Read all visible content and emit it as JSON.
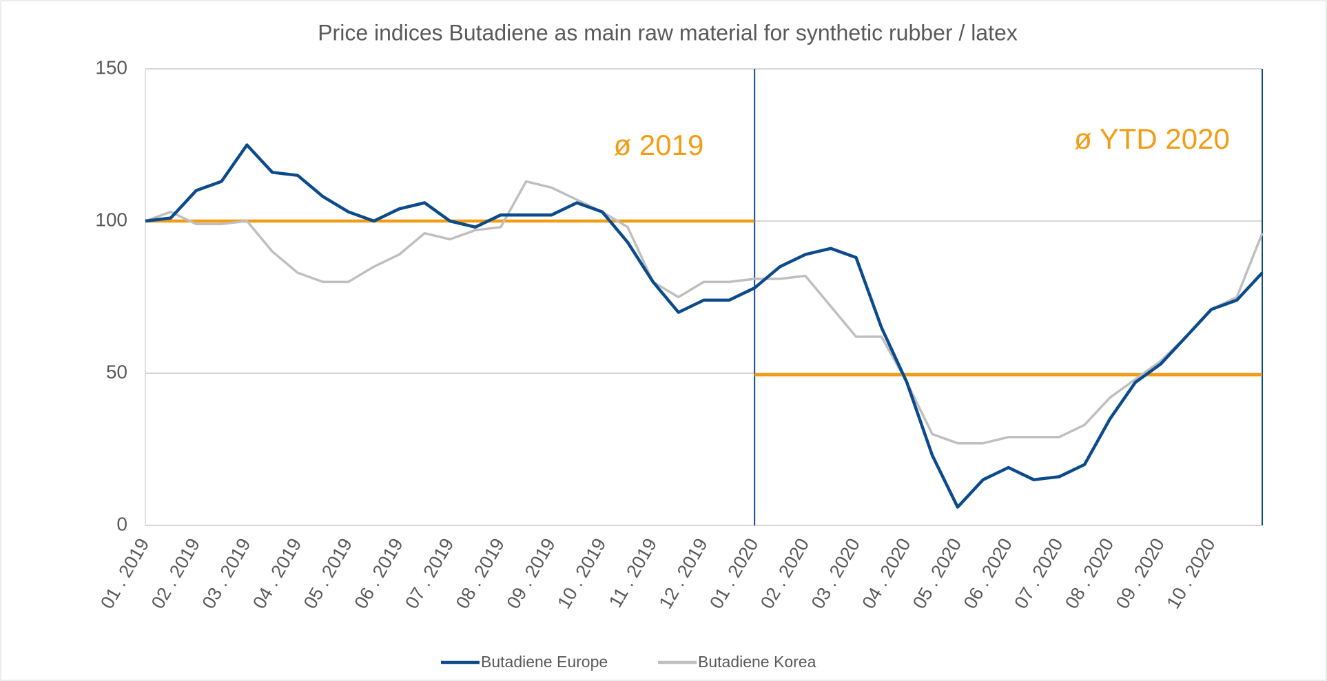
{
  "chart_data": {
    "type": "line",
    "title": "Price indices Butadiene as main raw material for synthetic rubber / latex",
    "categories": [
      "01 . 2019",
      null,
      "02 . 2019",
      null,
      "03 . 2019",
      null,
      "04 . 2019",
      null,
      "05 . 2019",
      null,
      "06 . 2019",
      null,
      "07 . 2019",
      null,
      "08 . 2019",
      null,
      "09 . 2019",
      null,
      "10 . 2019",
      null,
      "11 . 2019",
      null,
      "12 . 2019",
      null,
      "01 . 2020",
      null,
      "02 . 2020",
      null,
      "03 . 2020",
      null,
      "04 . 2020",
      null,
      "05 . 2020",
      null,
      "06 . 2020",
      null,
      "07 . 2020",
      null,
      "08 . 2020",
      null,
      "09 . 2020",
      null,
      "10 . 2020",
      null,
      null
    ],
    "series": [
      {
        "name": "Butadiene Europe",
        "color": "#0b4a8b",
        "values": [
          100,
          101,
          110,
          113,
          125,
          116,
          115,
          108,
          103,
          100,
          104,
          106,
          100,
          98,
          102,
          102,
          102,
          106,
          103,
          93,
          80,
          70,
          74,
          74,
          78,
          85,
          89,
          91,
          88,
          65,
          47,
          23,
          6,
          15,
          19,
          15,
          16,
          20,
          35,
          47,
          53,
          62,
          71,
          74,
          83
        ]
      },
      {
        "name": "Butadiene Korea",
        "color": "#bfbfbf",
        "values": [
          100,
          103,
          99,
          99,
          100,
          90,
          83,
          80,
          80,
          85,
          89,
          96,
          94,
          97,
          98,
          113,
          111,
          107,
          103,
          98,
          80,
          75,
          80,
          80,
          81,
          81,
          82,
          72,
          62,
          62,
          47,
          30,
          27,
          27,
          29,
          29,
          29,
          33,
          42,
          48,
          54,
          62,
          71,
          75,
          96
        ]
      }
    ],
    "averages": [
      {
        "label": "ø 2019",
        "value": 100,
        "from": 0,
        "to": 24
      },
      {
        "label": "ø YTD 2020",
        "value": 49.5,
        "from": 24,
        "to": 44
      }
    ],
    "average_color": "#f39c12",
    "vlines": [
      24,
      44
    ],
    "ylim": [
      0,
      150
    ],
    "yticks": [
      0,
      50,
      100,
      150
    ],
    "grid": true
  }
}
